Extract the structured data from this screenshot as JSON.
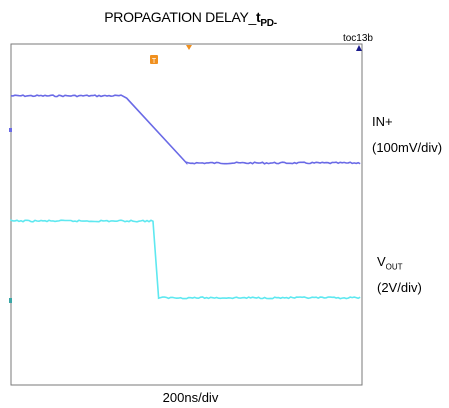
{
  "chart_data": {
    "type": "line",
    "title": "PROPAGATION DELAY_tPD-",
    "title_parts": {
      "prefix": "PROPAGATION DELAY",
      "symbol": "t",
      "subscript": "PD-"
    },
    "figure_id": "toc13b",
    "xlabel": "200ns/div",
    "grid": false,
    "series": [
      {
        "name": "IN+",
        "scale": "(100mV/div)",
        "color": "#6a6ae6",
        "x": [
          0,
          1.4,
          1.45,
          2.2,
          3.6,
          4.4
        ],
        "y": [
          2.9,
          2.9,
          2.85,
          1.5,
          1.5,
          1.5
        ],
        "note_units": "divisions"
      },
      {
        "name": "VOUT",
        "name_parts": {
          "main": "V",
          "sub": "OUT"
        },
        "scale": "(2V/div)",
        "color": "#5ee8f0",
        "x": [
          0,
          1.8,
          1.85,
          3.6,
          4.4
        ],
        "y": [
          3,
          3,
          1.4,
          1.4,
          1.4
        ],
        "note_units": "divisions"
      }
    ],
    "trigger_marker": "T"
  },
  "colors": {
    "frame": "#7a7a7a",
    "in_trace": "#6a6ae6",
    "out_trace": "#5ee8f0",
    "trigger": "#f0901f",
    "top_marker": "#1a1a8c"
  }
}
